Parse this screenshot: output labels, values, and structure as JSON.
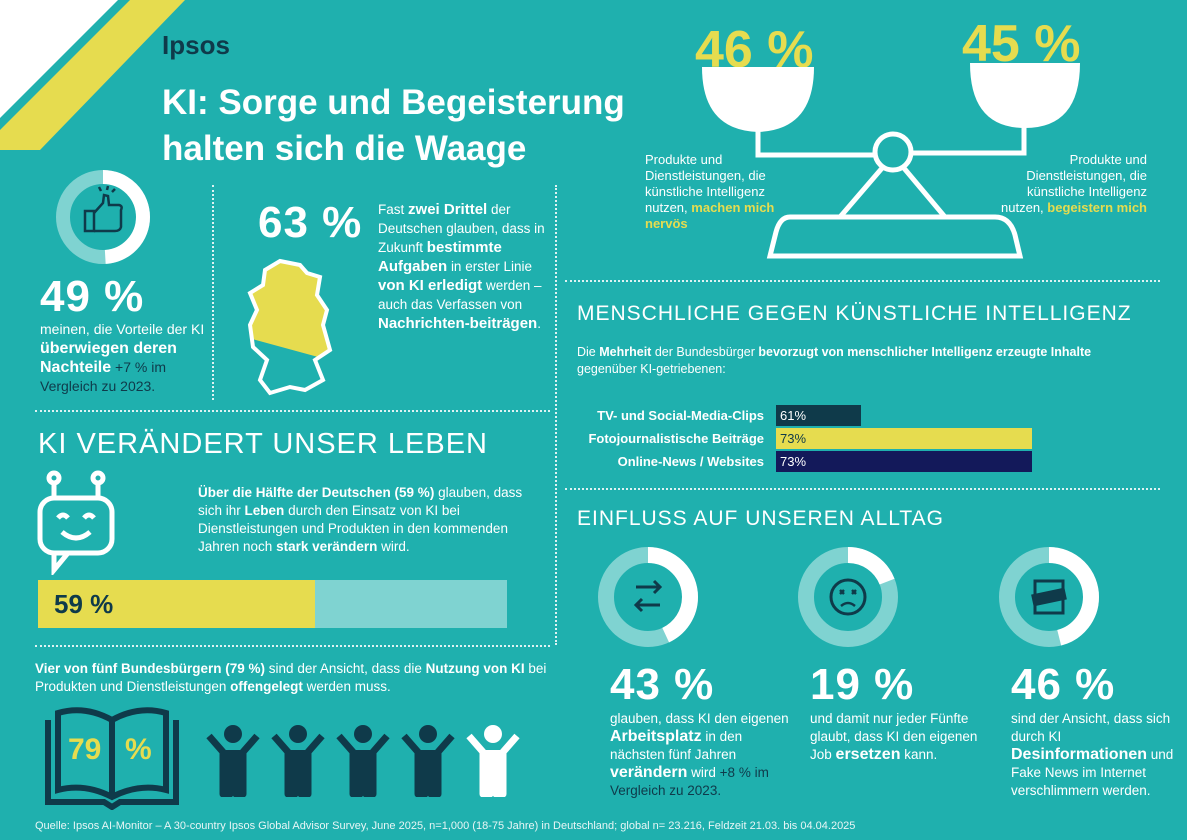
{
  "brand": "Ipsos",
  "title_lines": [
    "KI: Sorge und Begeisterung",
    "halten sich die Waage"
  ],
  "colors": {
    "background": "#1fb0ae",
    "yellow": "#e6dc4f",
    "navy": "#0f3a4a",
    "dark_blue": "#13195a",
    "light_teal": "#7fd3d1"
  },
  "stat_49": {
    "value": "49 %",
    "percent": 49,
    "icon": "thumbs-up-icon",
    "text_pre": "meinen, die Vorteile der KI",
    "text_bold": "überwiegen deren Nachteile",
    "text_change": "+7 % im Vergleich zu 2023."
  },
  "stat_63": {
    "value": "63 %",
    "icon": "germany-map-icon",
    "p1": "Fast",
    "b1": "zwei Drittel",
    "p2": "der Deutschen glauben, dass in Zukunft",
    "b2": "bestimmte Aufgaben",
    "p3": "in erster Linie",
    "b3": "von KI erledigt",
    "p4": "werden – auch das Verfassen von",
    "b4": "Nachrichten-beiträgen",
    "p5": "."
  },
  "scale": {
    "left": {
      "value": "46 %",
      "p": "Produkte und Dienstleistungen, die künstliche Intelligenz nutzen,",
      "b": "machen mich nervös"
    },
    "right": {
      "value": "45 %",
      "p": "Produkte und Dienstleistungen, die künstliche Intelligenz nutzen,",
      "b": "begeistern mich"
    }
  },
  "life": {
    "heading": "KI VERÄNDERT UNSER LEBEN",
    "icon": "robot-icon",
    "b1": "Über die Hälfte der Deutschen (59 %)",
    "p1": "glauben, dass sich ihr",
    "b2": "Leben",
    "p2": "durch den Einsatz von KI bei Dienstleistungen und Produkten in den kommenden Jahren noch",
    "b3": "stark verändern",
    "p3": "wird.",
    "bar_label": "59 %",
    "bar_percent": 59
  },
  "disclosure": {
    "b1": "Vier von fünf Bundesbürgern (79 %)",
    "p1": "sind der Ansicht, dass die",
    "b2": "Nutzung von KI",
    "p2": "bei Produkten und Dienstleistungen",
    "b3": "offengelegt",
    "p3": "werden muss.",
    "book_left": "79",
    "book_right": "%",
    "people_total": 5,
    "people_filled": 4
  },
  "human_vs_ai": {
    "heading": "MENSCHLICHE GEGEN KÜNSTLICHE INTELLIGENZ",
    "p1": "Die",
    "b1": "Mehrheit",
    "p2": "der Bundesbürger",
    "b2": "bevorzugt von menschlicher Intelligenz erzeugte Inhalte",
    "p3": "gegenüber KI-getriebenen:",
    "chart_data": {
      "type": "bar",
      "categories": [
        "TV- und Social-Media-Clips",
        "Fotojournalistische Beiträge",
        "Online-News / Websites"
      ],
      "values": [
        61,
        73,
        73
      ],
      "labels": [
        "61%",
        "73%",
        "73%"
      ],
      "colors": [
        "#0f3a4a",
        "#e6dc4f",
        "#13195a"
      ]
    }
  },
  "impact": {
    "heading": "EINFLUSS AUF UNSEREN ALLTAG",
    "items": [
      {
        "icon": "swap-arrows-icon",
        "value": "43 %",
        "percent": 43,
        "p1": "glauben, dass KI den eigenen",
        "b1": "Arbeitsplatz",
        "p2": "in den nächsten fünf Jahren",
        "b2": "verändern",
        "p3": "wird",
        "change": "+8 % im Vergleich zu 2023."
      },
      {
        "icon": "sad-face-icon",
        "value": "19 %",
        "percent": 19,
        "p1": "und damit nur jeder Fünfte glaubt, dass KI den eigenen Job",
        "b1": "ersetzen",
        "p2": "kann."
      },
      {
        "icon": "fake-news-icon",
        "value": "46 %",
        "percent": 46,
        "p1": "sind der Ansicht, dass sich durch KI",
        "b1": "Desinformationen",
        "p2": "und Fake News im Internet verschlimmern werden."
      }
    ]
  },
  "source": "Quelle: Ipsos AI-Monitor – A 30-country Ipsos Global Advisor Survey, June 2025, n=1,000 (18-75 Jahre) in Deutschland; global n= 23.216, Feldzeit 21.03. bis 04.04.2025"
}
